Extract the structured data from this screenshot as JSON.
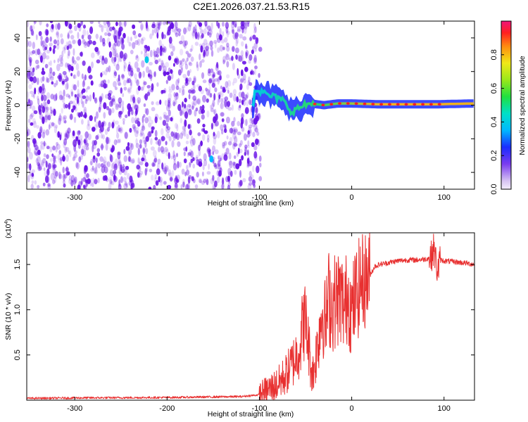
{
  "title": "C2E1.2026.037.21.53.R15",
  "colors": {
    "spectrogram_noise": "#6a14e6",
    "snr_line": "#e83030",
    "axes": "#000000"
  },
  "chart_data": [
    {
      "type": "heatmap",
      "name": "spectrogram",
      "xlabel": "Height of straight line (km)",
      "ylabel": "Frequency (Hz)",
      "xlim": [
        -352,
        133
      ],
      "ylim": [
        -50,
        50
      ],
      "xticks": [
        -300,
        -200,
        -100,
        0,
        100
      ],
      "xtick_labels": [
        "-300",
        "-200",
        "-100",
        "0",
        "100"
      ],
      "yticks": [
        -40,
        -20,
        0,
        20,
        40
      ],
      "ytick_labels": [
        "-40",
        "-20",
        "0",
        "20",
        "40"
      ],
      "noise_region_x": [
        -352,
        -105
      ],
      "signal_track": {
        "x_start": -108,
        "x_end": 133,
        "approx_frequency_hz": [
          [
            -105,
            10
          ],
          [
            -95,
            7
          ],
          [
            -85,
            5
          ],
          [
            -75,
            3
          ],
          [
            -65,
            -4
          ],
          [
            -55,
            -1
          ],
          [
            -45,
            1
          ],
          [
            -30,
            0
          ],
          [
            -15,
            1
          ],
          [
            0,
            1
          ],
          [
            30,
            0.5
          ],
          [
            60,
            0.5
          ],
          [
            90,
            0.5
          ],
          [
            133,
            1
          ]
        ]
      },
      "colorbar": {
        "label": "Normalized spectral amplitude",
        "range": [
          0,
          1
        ],
        "ticks": [
          0.0,
          0.2,
          0.4,
          0.6,
          0.8
        ],
        "tick_labels": [
          "0.0",
          "0.2",
          "0.4",
          "0.6",
          "0.8"
        ]
      }
    },
    {
      "type": "line",
      "name": "snr",
      "xlabel": "Height of straight line (km)",
      "ylabel": "SNR (10 * v/v)",
      "multiplier": "(x10",
      "multiplier_exponent": "4",
      "multiplier_close": ")",
      "xlim": [
        -352,
        133
      ],
      "ylim": [
        0,
        1.85
      ],
      "xticks": [
        -300,
        -200,
        -100,
        0,
        100
      ],
      "xtick_labels": [
        "-300",
        "-200",
        "-100",
        "0",
        "100"
      ],
      "yticks": [
        0.5,
        1.0,
        1.5
      ],
      "ytick_labels": [
        "0.5",
        "1.0",
        "1.5"
      ],
      "series": [
        {
          "name": "SNR",
          "x": [
            -352,
            -300,
            -200,
            -120,
            -100,
            -90,
            -80,
            -70,
            -62,
            -56,
            -52,
            -49,
            -46,
            -44,
            -42,
            -40,
            -36,
            -32,
            -28,
            -25,
            -22,
            -18,
            -12,
            -8,
            -4,
            0,
            4,
            10,
            18,
            25,
            30,
            40,
            50,
            60,
            70,
            80,
            86,
            89,
            91,
            93,
            96,
            100,
            110,
            120,
            133
          ],
          "y": [
            0.02,
            0.025,
            0.03,
            0.04,
            0.06,
            0.12,
            0.18,
            0.3,
            0.45,
            0.6,
            0.9,
            0.8,
            0.55,
            0.35,
            0.3,
            0.4,
            0.7,
            1.0,
            0.85,
            1.15,
            1.05,
            1.1,
            1.15,
            1.0,
            1.2,
            0.95,
            1.15,
            1.3,
            1.35,
            1.48,
            1.5,
            1.52,
            1.54,
            1.55,
            1.55,
            1.56,
            1.58,
            1.68,
            1.55,
            1.42,
            1.55,
            1.54,
            1.53,
            1.52,
            1.5
          ]
        }
      ]
    }
  ]
}
